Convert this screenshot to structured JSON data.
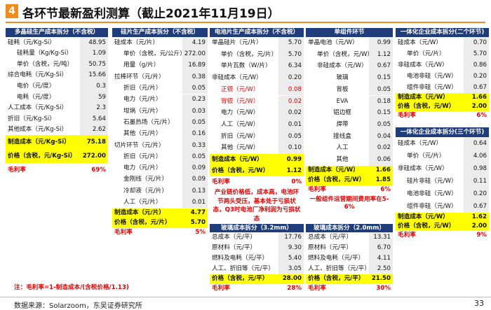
{
  "header": {
    "number": "4",
    "title": "各环节最新盈利测算（截止2021年11月19日）"
  },
  "tables": [
    {
      "title": "多晶硅生产成本拆分（不含税）",
      "rows": [
        {
          "label": "硅耗（元/Kg-Si）",
          "value": "48.95"
        },
        {
          "label": "硅耗量（Kg/Kg-Si）",
          "value": "1.09"
        },
        {
          "label": "单价（含税，元/吨）",
          "value": "50.75"
        },
        {
          "label": "综合电耗（元/Kg-Si）",
          "value": "15.66"
        },
        {
          "label": "电价（元/度）",
          "value": "0.3"
        },
        {
          "label": "电耗（元/度）",
          "value": "59"
        },
        {
          "label": "人工成本（元/Kg-Si）",
          "value": "2.3"
        },
        {
          "label": "折旧（元/Kg-Si）",
          "value": "5.64"
        },
        {
          "label": "其他成本（元/Kg-Si）",
          "value": "2.62"
        }
      ],
      "summary": [
        {
          "label": "制造成本（元/Kg-Si）",
          "value": "75.18"
        },
        {
          "label": "价格（含税，元/Kg-Si）",
          "value": "272.00"
        },
        {
          "label": "毛利率",
          "value": "69%"
        }
      ]
    },
    {
      "title": "硅片生产成本拆分（不含税）",
      "rows": [
        {
          "label": "硅成本（元/片）",
          "value": "4.19"
        },
        {
          "label": "单价（含税，元/公斤）",
          "value": "272.00"
        },
        {
          "label": "用量（g/片）",
          "value": "16.89"
        },
        {
          "label": "拉棒环节（元/片）",
          "value": "0.38"
        },
        {
          "label": "折旧（元/片）",
          "value": "0.05"
        },
        {
          "label": "电力（元/片）",
          "value": "0.23"
        },
        {
          "label": "坩埚（元/片）",
          "value": "0.03"
        },
        {
          "label": "石墨热场（元/片）",
          "value": "0.05"
        },
        {
          "label": "其他（元/片）",
          "value": "0.16"
        },
        {
          "label": "切片环节（元/片）",
          "value": "0.33"
        },
        {
          "label": "折旧（元/片）",
          "value": "0.05"
        },
        {
          "label": "电力（元/片）",
          "value": "0.09"
        },
        {
          "label": "金刚线（元/片）",
          "value": "0.09"
        },
        {
          "label": "冷却液（元/片）",
          "value": "0.13"
        },
        {
          "label": "人工（元/片）",
          "value": "0.01"
        }
      ],
      "summary": [
        {
          "label": "制造成本（元/片）",
          "value": "4.77"
        },
        {
          "label": "价格（含税，元/片）",
          "value": "5.70"
        },
        {
          "label": "毛利率",
          "value": "5%"
        }
      ]
    },
    {
      "title": "电池片生产成本拆分（不含税）",
      "rows": [
        {
          "label": "单晶硅片（元/片）",
          "value": "5.70"
        },
        {
          "label": "单价（含税，元/片）",
          "value": "5.70"
        },
        {
          "label": "单片瓦数（W/片）",
          "value": "6.34"
        },
        {
          "label": "非硅成本（元/W）",
          "value": "0.20"
        },
        {
          "label": "正银（元/W）",
          "value": "0.08"
        },
        {
          "label": "背银（元/W）",
          "value": "0.02"
        },
        {
          "label": "电力（元/W）",
          "value": "0.02"
        },
        {
          "label": "人工（元/W）",
          "value": "0.01"
        },
        {
          "label": "折旧（元/W）",
          "value": "0.05"
        },
        {
          "label": "其他（元/W）",
          "value": "0.10"
        }
      ],
      "summary": [
        {
          "label": "制造成本（元/W）",
          "value": "0.99"
        },
        {
          "label": "价格（含税，元/W）",
          "value": "1.12"
        },
        {
          "label": "毛利率",
          "value": "0%"
        }
      ]
    },
    {
      "title": "单组件环节",
      "rows": [
        {
          "label": "单晶电池（元/W）",
          "value": "0.99"
        },
        {
          "label": "单价（含税，元/W）",
          "value": "1.12"
        },
        {
          "label": "非硅成本（元/W）",
          "value": "0.67"
        },
        {
          "label": "玻璃",
          "value": "0.15"
        },
        {
          "label": "背板",
          "value": "0.05"
        },
        {
          "label": "EVA",
          "value": "0.18"
        },
        {
          "label": "铝边框",
          "value": "0.15"
        },
        {
          "label": "焊带",
          "value": "0.05"
        },
        {
          "label": "接线盒",
          "value": "0.04"
        },
        {
          "label": "人工",
          "value": "0.02"
        },
        {
          "label": "其他",
          "value": "0.06"
        }
      ],
      "summary": [
        {
          "label": "制造成本（元/W）",
          "value": "1.66"
        },
        {
          "label": "价格（含税，元/W）",
          "value": "1.85"
        },
        {
          "label": "毛利率",
          "value": "6%"
        }
      ]
    },
    {
      "title": "一体化企业成本拆分(二个环节)",
      "rows": [
        {
          "label": "硅成本（元/W）",
          "value": "0.70"
        },
        {
          "label": "单价（元/片）",
          "value": "5.70"
        },
        {
          "label": "非硅成本（元/W）",
          "value": "0.86"
        },
        {
          "label": "电池非硅（元/W）",
          "value": "0.20"
        },
        {
          "label": "组件非硅（元/W）",
          "value": "0.67"
        }
      ],
      "summary": [
        {
          "label": "制造成本（元/W）",
          "value": "1.66"
        },
        {
          "label": "价格（含税，元/W）",
          "value": "2.00"
        },
        {
          "label": "毛利率",
          "value": "6%"
        }
      ]
    },
    {
      "title": "一体化企业成本拆分(三个环节)",
      "rows": [
        {
          "label": "硅成本（元/W）",
          "value": "0.64"
        },
        {
          "label": "单价（元/片）",
          "value": "4.06"
        },
        {
          "label": "非硅成本（元/W）",
          "value": "0.98"
        },
        {
          "label": "硅片非硅（元/W）",
          "value": "0.11"
        },
        {
          "label": "电池非硅（元/W）",
          "value": "0.20"
        },
        {
          "label": "组件非硅（元/W）",
          "value": "0.67"
        }
      ],
      "summary": [
        {
          "label": "制造成本（元/W）",
          "value": "1.62"
        },
        {
          "label": "价格（含税，元/W）",
          "value": "2.00"
        },
        {
          "label": "毛利率",
          "value": "9%"
        }
      ]
    },
    {
      "title": "玻璃成本拆分（3.2mm）",
      "rows": [
        {
          "label": "总成本（元/平）",
          "value": "17.76"
        },
        {
          "label": "原材料（元/平）",
          "value": "9.30"
        },
        {
          "label": "燃料及电耗（元/平）",
          "value": "5.40"
        },
        {
          "label": "人工、折旧等（元/平）",
          "value": "3.05"
        }
      ],
      "summary": [
        {
          "label": "价格（含税，元/平）",
          "value": "28.00"
        },
        {
          "label": "毛利率",
          "value": "28%"
        }
      ]
    },
    {
      "title": "玻璃成本拆分（2.0mm）",
      "rows": [
        {
          "label": "总成本（元/平）",
          "value": "13.31"
        },
        {
          "label": "原材料（元/平）",
          "value": "6.70"
        },
        {
          "label": "燃料及电耗（元/平）",
          "value": "4.11"
        },
        {
          "label": "人工、折旧等（元/平）",
          "value": "2.50"
        }
      ],
      "summary": [
        {
          "label": "价格（含税，元/平）",
          "value": "21.50"
        },
        {
          "label": "毛利率",
          "value": "30%"
        }
      ]
    }
  ],
  "notes": [
    "注：毛利率=1-制造成本/(含税价格/1.13)",
    "产业链价格低，成本高，电池环节两头受压，基本处于亏损状态，Q3时电池厂净利润为亏损状态",
    "一般组件运营期间费用率在5-6%"
  ],
  "footer": {
    "source": "数据来源：Solarzoom，东吴证券研究所",
    "page": "33"
  }
}
